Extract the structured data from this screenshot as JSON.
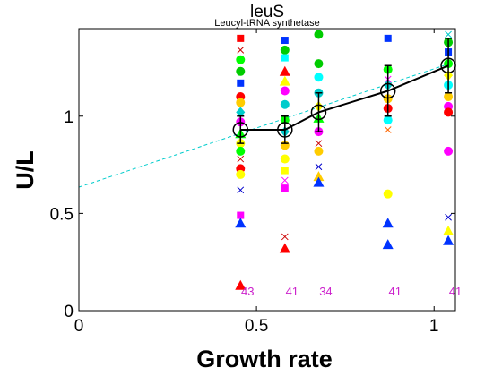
{
  "chart_data": {
    "type": "scatter",
    "title": "leuS",
    "subtitle": "Leucyl-tRNA synthetase",
    "xlabel": "Growth rate",
    "ylabel": "U/L",
    "xlim": [
      0,
      1.06
    ],
    "ylim": [
      0,
      1.45
    ],
    "xticks": [
      0,
      0.5,
      1
    ],
    "xtick_labels": [
      "0",
      "0.5",
      "1"
    ],
    "yticks": [
      0,
      0.5,
      1
    ],
    "ytick_labels": [
      "0",
      "0.5",
      "1"
    ],
    "grid": false,
    "legend": "none",
    "mean_series": {
      "x": [
        0.455,
        0.58,
        0.675,
        0.87,
        1.04
      ],
      "y": [
        0.93,
        0.93,
        1.02,
        1.13,
        1.26
      ],
      "err": [
        0.07,
        0.07,
        0.1,
        0.13,
        0.14
      ],
      "color": "#000000"
    },
    "fit_line": {
      "x": [
        0,
        1.06
      ],
      "y": [
        0.635,
        1.28
      ],
      "color": "#00cccc",
      "style": "dashed"
    },
    "counts": [
      {
        "x": 0.455,
        "label": "43"
      },
      {
        "x": 0.58,
        "label": "41"
      },
      {
        "x": 0.675,
        "label": "34"
      },
      {
        "x": 0.87,
        "label": "41"
      },
      {
        "x": 1.04,
        "label": "41"
      }
    ],
    "points": [
      {
        "x": 0.455,
        "y": 1.4,
        "m": "s",
        "c": "#ff0000"
      },
      {
        "x": 0.455,
        "y": 1.34,
        "m": "x",
        "c": "#cc0000"
      },
      {
        "x": 0.455,
        "y": 1.29,
        "m": "o",
        "c": "#00ff00"
      },
      {
        "x": 0.455,
        "y": 1.23,
        "m": "o",
        "c": "#00cc00"
      },
      {
        "x": 0.455,
        "y": 1.17,
        "m": "s",
        "c": "#0033ff"
      },
      {
        "x": 0.455,
        "y": 1.1,
        "m": "o",
        "c": "#ff0000"
      },
      {
        "x": 0.455,
        "y": 1.07,
        "m": "o",
        "c": "#ffcc00"
      },
      {
        "x": 0.455,
        "y": 1.02,
        "m": "d",
        "c": "#00cccc"
      },
      {
        "x": 0.455,
        "y": 0.97,
        "m": "o",
        "c": "#ff00ff"
      },
      {
        "x": 0.455,
        "y": 0.91,
        "m": "^",
        "c": "#00ff00"
      },
      {
        "x": 0.455,
        "y": 0.86,
        "m": "o",
        "c": "#ffff00"
      },
      {
        "x": 0.455,
        "y": 0.82,
        "m": "o",
        "c": "#00ff00"
      },
      {
        "x": 0.455,
        "y": 0.78,
        "m": "x",
        "c": "#cc0000"
      },
      {
        "x": 0.455,
        "y": 0.73,
        "m": "o",
        "c": "#ff0000"
      },
      {
        "x": 0.455,
        "y": 0.7,
        "m": "o",
        "c": "#ffff00"
      },
      {
        "x": 0.455,
        "y": 0.62,
        "m": "x",
        "c": "#0000cc"
      },
      {
        "x": 0.455,
        "y": 0.49,
        "m": "s",
        "c": "#ff00ff"
      },
      {
        "x": 0.455,
        "y": 0.45,
        "m": "^",
        "c": "#0033ff"
      },
      {
        "x": 0.455,
        "y": 0.13,
        "m": "^",
        "c": "#ff0000"
      },
      {
        "x": 0.58,
        "y": 1.39,
        "m": "s",
        "c": "#0033ff"
      },
      {
        "x": 0.58,
        "y": 1.34,
        "m": "o",
        "c": "#00cc00"
      },
      {
        "x": 0.58,
        "y": 1.3,
        "m": "s",
        "c": "#00ffff"
      },
      {
        "x": 0.58,
        "y": 1.23,
        "m": "^",
        "c": "#ff0000"
      },
      {
        "x": 0.58,
        "y": 1.18,
        "m": "^",
        "c": "#ffff00"
      },
      {
        "x": 0.58,
        "y": 1.13,
        "m": "o",
        "c": "#ff00ff"
      },
      {
        "x": 0.58,
        "y": 1.06,
        "m": "o",
        "c": "#00cccc"
      },
      {
        "x": 0.58,
        "y": 0.98,
        "m": "o",
        "c": "#00ff00"
      },
      {
        "x": 0.58,
        "y": 0.92,
        "m": "d",
        "c": "#00cccc"
      },
      {
        "x": 0.58,
        "y": 0.85,
        "m": "o",
        "c": "#ffcc00"
      },
      {
        "x": 0.58,
        "y": 0.78,
        "m": "o",
        "c": "#ffff00"
      },
      {
        "x": 0.58,
        "y": 0.72,
        "m": "s",
        "c": "#ffff00"
      },
      {
        "x": 0.58,
        "y": 0.67,
        "m": "x",
        "c": "#ff00ff"
      },
      {
        "x": 0.58,
        "y": 0.63,
        "m": "s",
        "c": "#ff00ff"
      },
      {
        "x": 0.58,
        "y": 0.38,
        "m": "x",
        "c": "#cc0000"
      },
      {
        "x": 0.58,
        "y": 0.32,
        "m": "^",
        "c": "#ff0000"
      },
      {
        "x": 0.675,
        "y": 1.42,
        "m": "o",
        "c": "#00cc00"
      },
      {
        "x": 0.675,
        "y": 1.27,
        "m": "o",
        "c": "#00cc00"
      },
      {
        "x": 0.675,
        "y": 1.2,
        "m": "o",
        "c": "#00ffff"
      },
      {
        "x": 0.675,
        "y": 1.12,
        "m": "o",
        "c": "#00cccc"
      },
      {
        "x": 0.675,
        "y": 1.05,
        "m": "d",
        "c": "#ffff00"
      },
      {
        "x": 0.675,
        "y": 0.99,
        "m": "^",
        "c": "#00ff00"
      },
      {
        "x": 0.675,
        "y": 0.92,
        "m": "o",
        "c": "#ff00ff"
      },
      {
        "x": 0.675,
        "y": 0.86,
        "m": "x",
        "c": "#cc0000"
      },
      {
        "x": 0.675,
        "y": 0.82,
        "m": "o",
        "c": "#ffcc00"
      },
      {
        "x": 0.675,
        "y": 0.74,
        "m": "x",
        "c": "#0000cc"
      },
      {
        "x": 0.675,
        "y": 0.69,
        "m": "^",
        "c": "#ffcc00"
      },
      {
        "x": 0.675,
        "y": 0.66,
        "m": "^",
        "c": "#0033ff"
      },
      {
        "x": 0.87,
        "y": 1.4,
        "m": "s",
        "c": "#0033ff"
      },
      {
        "x": 0.87,
        "y": 1.24,
        "m": "o",
        "c": "#00ff00"
      },
      {
        "x": 0.87,
        "y": 1.19,
        "m": "x",
        "c": "#ff00ff"
      },
      {
        "x": 0.87,
        "y": 1.16,
        "m": "d",
        "c": "#00cccc"
      },
      {
        "x": 0.87,
        "y": 1.09,
        "m": "o",
        "c": "#ffcc00"
      },
      {
        "x": 0.87,
        "y": 1.04,
        "m": "o",
        "c": "#ff0000"
      },
      {
        "x": 0.87,
        "y": 0.98,
        "m": "o",
        "c": "#00ffff"
      },
      {
        "x": 0.87,
        "y": 0.93,
        "m": "x",
        "c": "#ff6600"
      },
      {
        "x": 0.87,
        "y": 0.6,
        "m": "o",
        "c": "#ffff00"
      },
      {
        "x": 0.87,
        "y": 0.45,
        "m": "^",
        "c": "#0033ff"
      },
      {
        "x": 0.87,
        "y": 0.34,
        "m": "^",
        "c": "#0033ff"
      },
      {
        "x": 1.04,
        "y": 1.42,
        "m": "x",
        "c": "#00cccc"
      },
      {
        "x": 1.04,
        "y": 1.38,
        "m": "o",
        "c": "#00cc00"
      },
      {
        "x": 1.04,
        "y": 1.33,
        "m": "s",
        "c": "#0033ff"
      },
      {
        "x": 1.04,
        "y": 1.27,
        "m": "o",
        "c": "#00ff00"
      },
      {
        "x": 1.04,
        "y": 1.21,
        "m": "d",
        "c": "#ffff00"
      },
      {
        "x": 1.04,
        "y": 1.16,
        "m": "o",
        "c": "#00ffff"
      },
      {
        "x": 1.04,
        "y": 1.1,
        "m": "o",
        "c": "#ffcc00"
      },
      {
        "x": 1.04,
        "y": 1.05,
        "m": "o",
        "c": "#ff00ff"
      },
      {
        "x": 1.04,
        "y": 1.02,
        "m": "o",
        "c": "#ff0000"
      },
      {
        "x": 1.04,
        "y": 0.82,
        "m": "o",
        "c": "#ff00ff"
      },
      {
        "x": 1.04,
        "y": 0.48,
        "m": "x",
        "c": "#0000cc"
      },
      {
        "x": 1.04,
        "y": 0.41,
        "m": "^",
        "c": "#ffff00"
      },
      {
        "x": 1.04,
        "y": 0.36,
        "m": "^",
        "c": "#0033ff"
      }
    ]
  }
}
